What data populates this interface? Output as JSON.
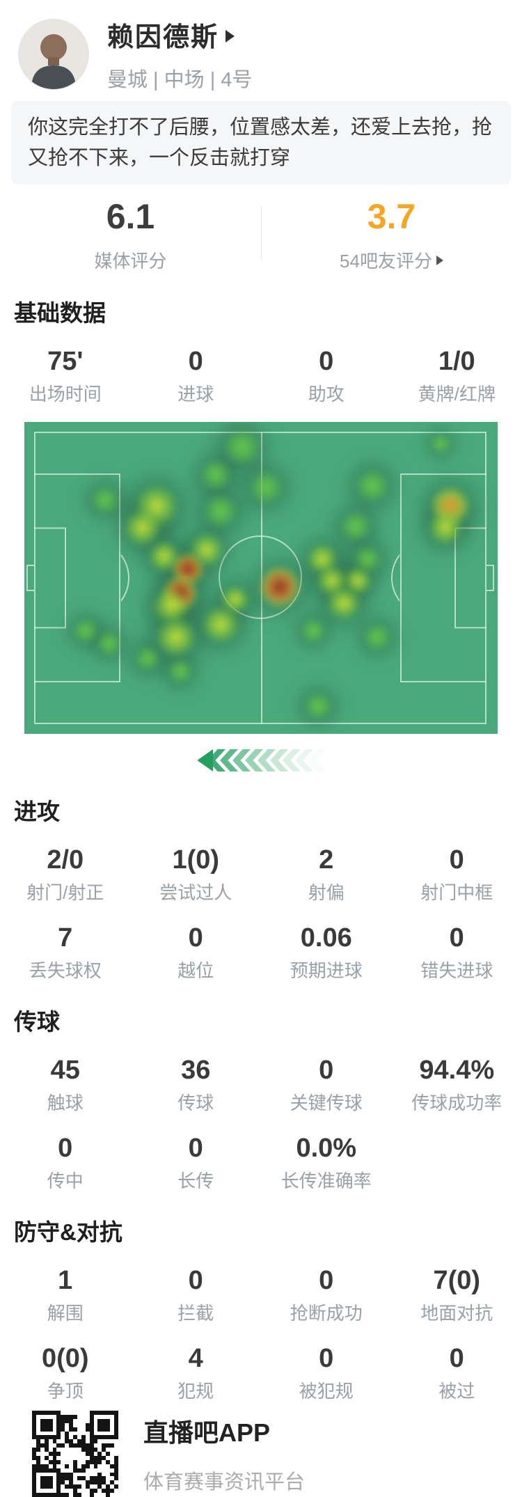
{
  "header": {
    "name": "赖因德斯",
    "meta": "曼城 | 中场 | 4号"
  },
  "comment": {
    "text": "你这完全打不了后腰，位置感太差，还爱上去抢，抢又抢不下来，一个反击就打穿"
  },
  "ratings": {
    "media": {
      "value": "6.1",
      "label": "媒体评分"
    },
    "fan": {
      "value": "3.7",
      "label": "54吧友评分",
      "accent_color": "#F5A623"
    }
  },
  "sections": [
    {
      "id": "basic",
      "title": "基础数据",
      "rows": [
        [
          {
            "value": "75'",
            "label": "出场时间"
          },
          {
            "value": "0",
            "label": "进球"
          },
          {
            "value": "0",
            "label": "助攻"
          },
          {
            "value": "1/0",
            "label": "黄牌/红牌"
          }
        ]
      ]
    },
    {
      "id": "attack",
      "title": "进攻",
      "rows": [
        [
          {
            "value": "2/0",
            "label": "射门/射正"
          },
          {
            "value": "1(0)",
            "label": "尝试过人"
          },
          {
            "value": "2",
            "label": "射偏"
          },
          {
            "value": "0",
            "label": "射门中框"
          }
        ],
        [
          {
            "value": "7",
            "label": "丢失球权"
          },
          {
            "value": "0",
            "label": "越位"
          },
          {
            "value": "0.06",
            "label": "预期进球"
          },
          {
            "value": "0",
            "label": "错失进球"
          }
        ]
      ]
    },
    {
      "id": "pass",
      "title": "传球",
      "rows": [
        [
          {
            "value": "45",
            "label": "触球"
          },
          {
            "value": "36",
            "label": "传球"
          },
          {
            "value": "0",
            "label": "关键传球"
          },
          {
            "value": "94.4%",
            "label": "传球成功率"
          }
        ],
        [
          {
            "value": "0",
            "label": "传中"
          },
          {
            "value": "0",
            "label": "长传"
          },
          {
            "value": "0.0%",
            "label": "长传准确率"
          }
        ]
      ]
    },
    {
      "id": "defense",
      "title": "防守&对抗",
      "rows": [
        [
          {
            "value": "1",
            "label": "解围"
          },
          {
            "value": "0",
            "label": "拦截"
          },
          {
            "value": "0",
            "label": "抢断成功"
          },
          {
            "value": "7(0)",
            "label": "地面对抗"
          }
        ],
        [
          {
            "value": "0(0)",
            "label": "争顶"
          },
          {
            "value": "4",
            "label": "犯规"
          },
          {
            "value": "0",
            "label": "被犯规"
          },
          {
            "value": "0",
            "label": "被过"
          }
        ]
      ]
    }
  ],
  "heatmap": {
    "pitch_color": "#4AA97A",
    "line_color": "rgba(240,252,246,0.65)",
    "attack_direction": "left",
    "blobs": [
      [
        46,
        8,
        26,
        "g"
      ],
      [
        40.5,
        17,
        22,
        "g"
      ],
      [
        51,
        21,
        24,
        "g"
      ],
      [
        17,
        25,
        20,
        "g"
      ],
      [
        28,
        27,
        30,
        "y"
      ],
      [
        25,
        34,
        26,
        "y"
      ],
      [
        41.5,
        28.5,
        24,
        "g"
      ],
      [
        73.5,
        20.5,
        24,
        "g"
      ],
      [
        90,
        27,
        28,
        "o"
      ],
      [
        89,
        34,
        24,
        "y"
      ],
      [
        70,
        33.5,
        22,
        "g"
      ],
      [
        88,
        7,
        15,
        "g"
      ],
      [
        38.5,
        41,
        24,
        "y"
      ],
      [
        29.5,
        43,
        22,
        "y"
      ],
      [
        34.5,
        47,
        22,
        "r"
      ],
      [
        33,
        55,
        24,
        "r"
      ],
      [
        31,
        59,
        26,
        "y"
      ],
      [
        44.5,
        57,
        20,
        "y"
      ],
      [
        41.5,
        65,
        26,
        "y"
      ],
      [
        54,
        53,
        28,
        "r"
      ],
      [
        63,
        44,
        22,
        "y"
      ],
      [
        65,
        51,
        22,
        "y"
      ],
      [
        67.5,
        58,
        24,
        "y"
      ],
      [
        70.5,
        51,
        20,
        "y"
      ],
      [
        72.5,
        44,
        20,
        "g"
      ],
      [
        61,
        67,
        18,
        "g"
      ],
      [
        74.5,
        69,
        20,
        "g"
      ],
      [
        13,
        67,
        18,
        "g"
      ],
      [
        18,
        71,
        18,
        "g"
      ],
      [
        26,
        76,
        18,
        "g"
      ],
      [
        33,
        80,
        18,
        "g"
      ],
      [
        32,
        69,
        28,
        "y"
      ],
      [
        62,
        91,
        20,
        "g"
      ]
    ],
    "arrow_count": 10,
    "arrow_color": "35,158,95"
  },
  "footer": {
    "app_name": "直播吧APP",
    "app_subtitle": "体育赛事资讯平台"
  }
}
